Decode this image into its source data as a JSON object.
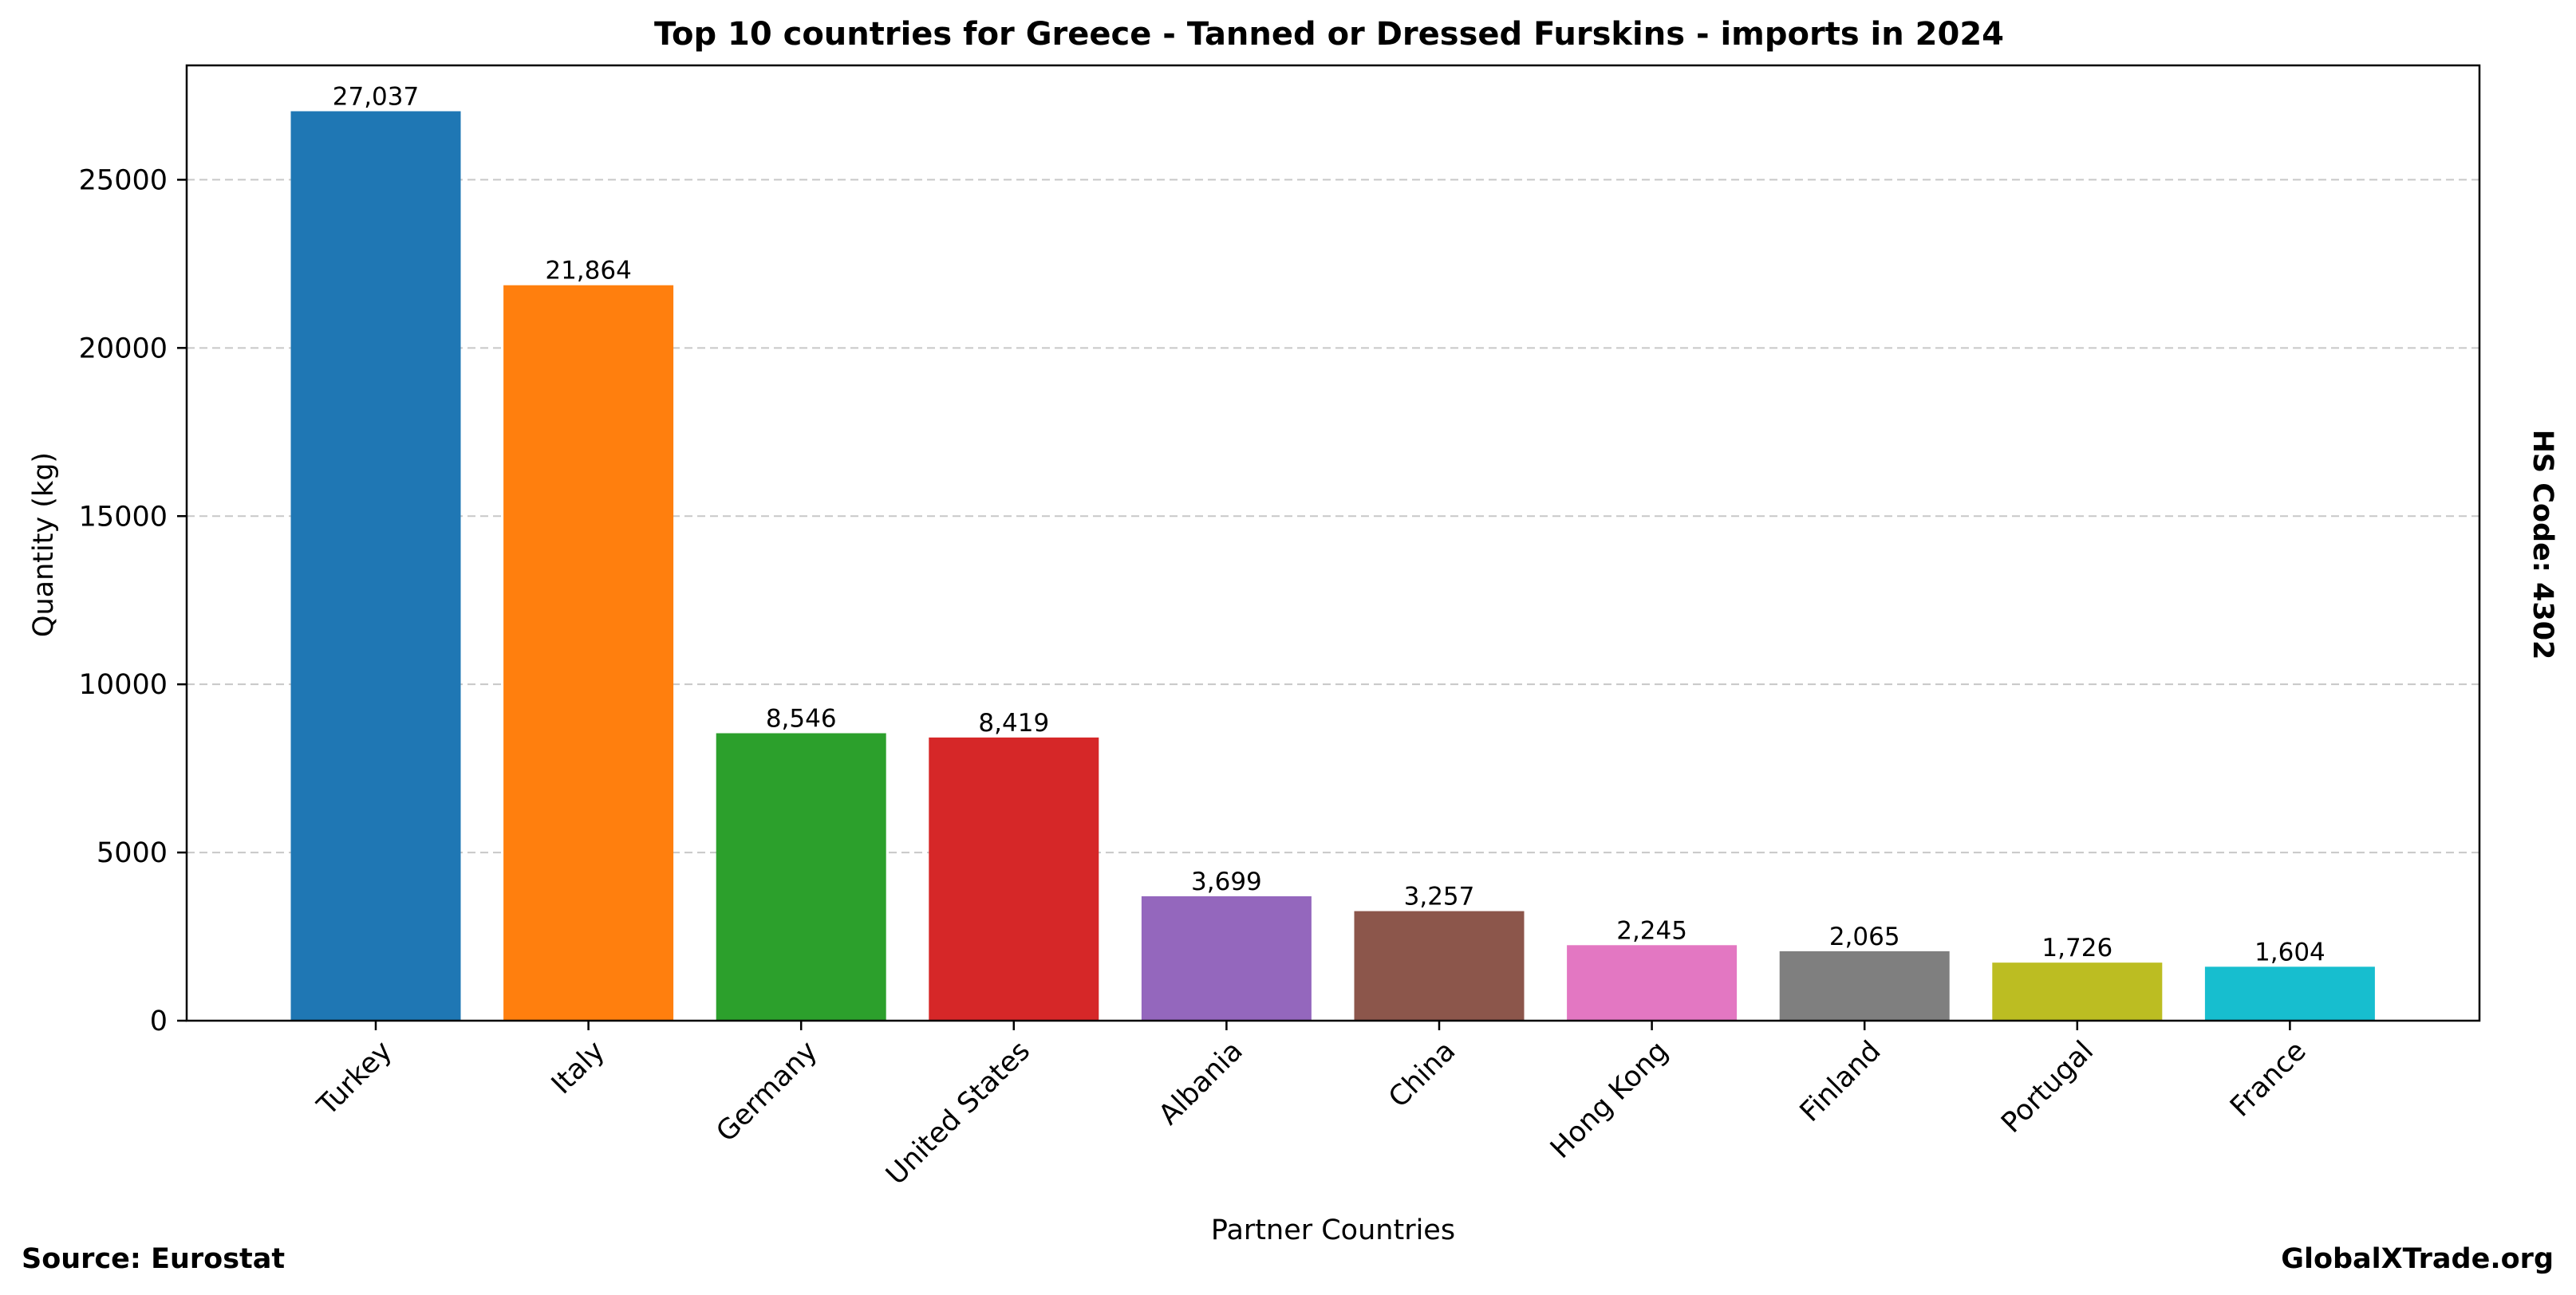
{
  "chart_data": {
    "type": "bar",
    "title": "Top 10 countries for Greece - Tanned or Dressed Furskins - imports in 2024",
    "xlabel": "Partner Countries",
    "ylabel": "Quantity (kg)",
    "categories": [
      "Turkey",
      "Italy",
      "Germany",
      "United States",
      "Albania",
      "China",
      "Hong Kong",
      "Finland",
      "Portugal",
      "France"
    ],
    "values": [
      27037,
      21864,
      8546,
      8419,
      3699,
      3257,
      2245,
      2065,
      1726,
      1604
    ],
    "value_labels": [
      "27,037",
      "21,864",
      "8,546",
      "8,419",
      "3,699",
      "3,257",
      "2,245",
      "2,065",
      "1,726",
      "1,604"
    ],
    "colors": [
      "#1f77b4",
      "#ff7f0e",
      "#2ca02c",
      "#d62728",
      "#9467bd",
      "#8c564b",
      "#e377c2",
      "#7f7f7f",
      "#bcbd22",
      "#17becf"
    ],
    "ylim": [
      0,
      28400
    ],
    "yticks": [
      0,
      5000,
      10000,
      15000,
      20000,
      25000
    ],
    "grid": "horizontal-dashed"
  },
  "footer": {
    "source": "Source: Eurostat",
    "site": "GlobalXTrade.org"
  },
  "side_note": "HS Code: 4302"
}
